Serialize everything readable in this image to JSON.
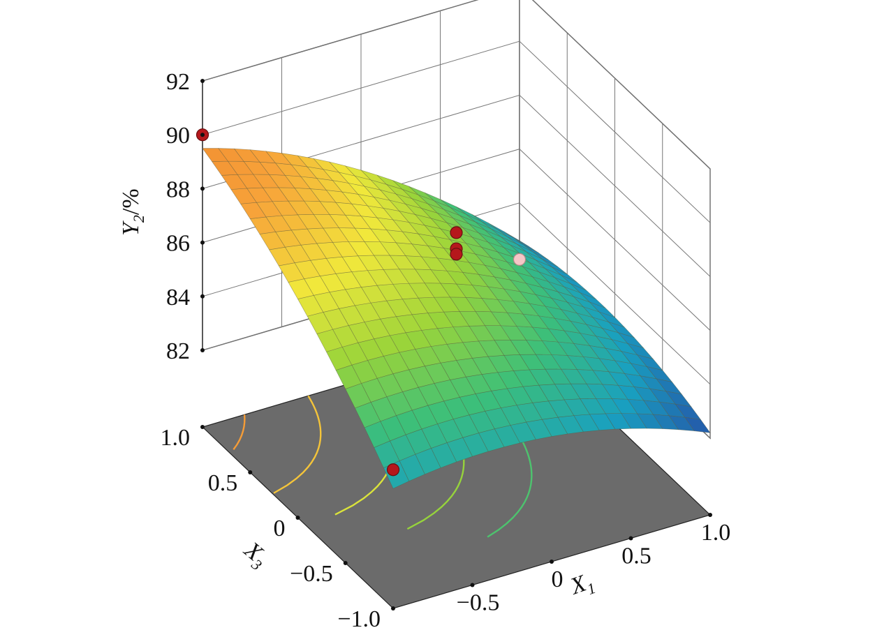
{
  "chart_data": {
    "type": "surface3d",
    "x_axis": {
      "label": "X",
      "subscript": "1",
      "range": [
        -1,
        1
      ],
      "ticks": [
        "-0.5",
        "0",
        "0.5",
        "1.0"
      ],
      "tick_values": [
        -0.5,
        0,
        0.5,
        1
      ]
    },
    "y_axis": {
      "label": "X",
      "subscript": "3",
      "range": [
        -1,
        1
      ],
      "ticks": [
        "-1.0",
        "-0.5",
        "0",
        "0.5",
        "1.0"
      ],
      "tick_values": [
        -1,
        -0.5,
        0,
        0.5,
        1
      ]
    },
    "z_axis": {
      "label": "Y",
      "subscript": "2",
      "unit_suffix": "/%",
      "range": [
        82,
        92
      ],
      "ticks": [
        "82",
        "84",
        "86",
        "88",
        "90",
        "92"
      ],
      "tick_values": [
        82,
        84,
        86,
        88,
        90,
        92
      ]
    },
    "surface": {
      "model": "quadratic",
      "corner_values": {
        "x1_-1_x3_-1": 83.6,
        "x1_-1_x3_1": 89.5,
        "x1_1_x3_1": 82.6,
        "x1_1_x3_-1": 82.2
      },
      "grid_steps": 20,
      "colormap": [
        "#2554a8",
        "#19a0c0",
        "#3cbf7a",
        "#9ad43a",
        "#f1e83b",
        "#f7a33a",
        "#f08a30"
      ]
    },
    "contour_levels": [
      85,
      86,
      87,
      88,
      89,
      89.8
    ],
    "floor_color": "#6b6b6b",
    "design_points": [
      {
        "x1": -1,
        "x3": 1,
        "y": 90.0,
        "above_surface": true
      },
      {
        "x1": -1,
        "x3": -1,
        "y": 84.3,
        "above_surface": true
      },
      {
        "x1": 0,
        "x3": 0,
        "y": 88.0,
        "above_surface": true
      },
      {
        "x1": 0,
        "x3": 0,
        "y": 87.4,
        "above_surface": true
      },
      {
        "x1": 0,
        "x3": 0,
        "y": 87.2,
        "above_surface": true
      },
      {
        "x1": 1,
        "x3": 1,
        "y": 81.9,
        "above_surface": false
      }
    ]
  }
}
